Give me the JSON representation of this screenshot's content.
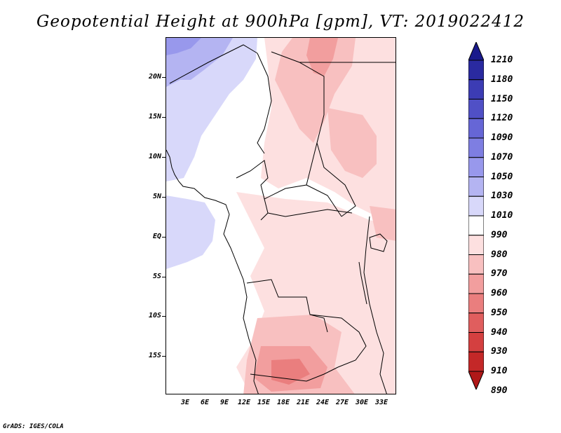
{
  "title": "Geopotential Height at 900hPa [gpm], VT: 2019022412",
  "footer": "GrADS: IGES/COLA",
  "map": {
    "lat_labels": [
      "20N",
      "15N",
      "10N",
      "5N",
      "EQ",
      "5S",
      "10S",
      "15S"
    ],
    "lon_labels": [
      "3E",
      "6E",
      "9E",
      "12E",
      "15E",
      "18E",
      "21E",
      "24E",
      "27E",
      "30E",
      "33E"
    ]
  },
  "colorbar": {
    "levels": [
      "1210",
      "1180",
      "1150",
      "1120",
      "1090",
      "1070",
      "1050",
      "1030",
      "1010",
      "990",
      "980",
      "970",
      "960",
      "950",
      "940",
      "930",
      "910",
      "890"
    ],
    "colors": [
      "#1a1a8c",
      "#2a2aa0",
      "#3c3cb4",
      "#5050c6",
      "#6666d6",
      "#7e7ee2",
      "#9898ec",
      "#b4b4f2",
      "#d8d8fa",
      "#ffffff",
      "#fde0e0",
      "#f8c0c0",
      "#f29e9e",
      "#ea7e7e",
      "#e05e5e",
      "#d44040",
      "#c42828",
      "#b01818"
    ]
  }
}
